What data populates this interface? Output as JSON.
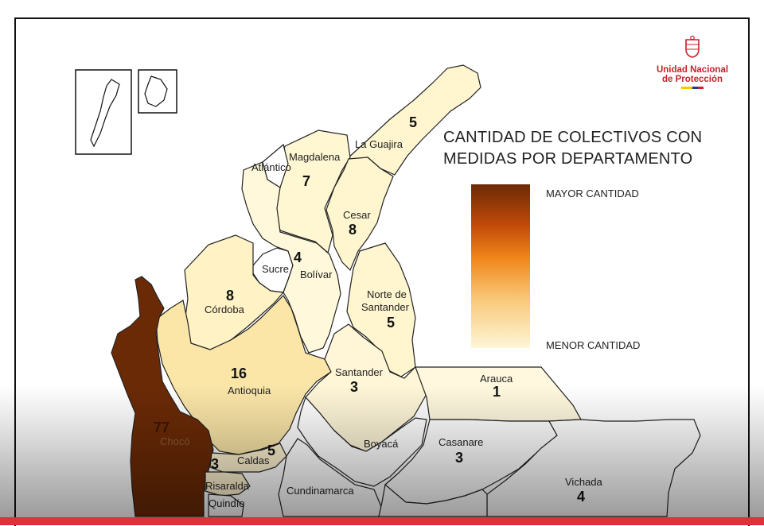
{
  "title_lines": [
    "CANTIDAD DE COLECTIVOS CON",
    "MEDIDAS POR DEPARTAMENTO"
  ],
  "legend": {
    "max_label": "MAYOR CANTIDAD",
    "min_label": "MENOR CANTIDAD",
    "color_max": "#6b2a06",
    "color_min": "#fdf6d8"
  },
  "logo": {
    "line1": "Unidad Nacional",
    "line2": "de Protección",
    "brand_color": "#c8202a",
    "flag_colors": [
      "#f6c800",
      "#1f3a93",
      "#d21f2b"
    ]
  },
  "departments": [
    {
      "name": "La Guajira",
      "count": "5"
    },
    {
      "name": "Magdalena",
      "count": "7"
    },
    {
      "name": "Atlántico",
      "count": ""
    },
    {
      "name": "Cesar",
      "count": "8"
    },
    {
      "name": "Sucre",
      "count": ""
    },
    {
      "name": "Bolívar",
      "count": "4"
    },
    {
      "name": "Córdoba",
      "count": "8"
    },
    {
      "name": "Norte de Santander",
      "count": "5"
    },
    {
      "name": "Antioquia",
      "count": "16"
    },
    {
      "name": "Santander",
      "count": "3"
    },
    {
      "name": "Arauca",
      "count": "1"
    },
    {
      "name": "Chocó",
      "count": "77"
    },
    {
      "name": "Caldas",
      "count": "5"
    },
    {
      "name": "Risaralda",
      "count": "3"
    },
    {
      "name": "Quindío",
      "count": ""
    },
    {
      "name": "Boyacá",
      "count": ""
    },
    {
      "name": "Cundinamarca",
      "count": ""
    },
    {
      "name": "Casanare",
      "count": "3"
    },
    {
      "name": "Vichada",
      "count": "4"
    }
  ]
}
